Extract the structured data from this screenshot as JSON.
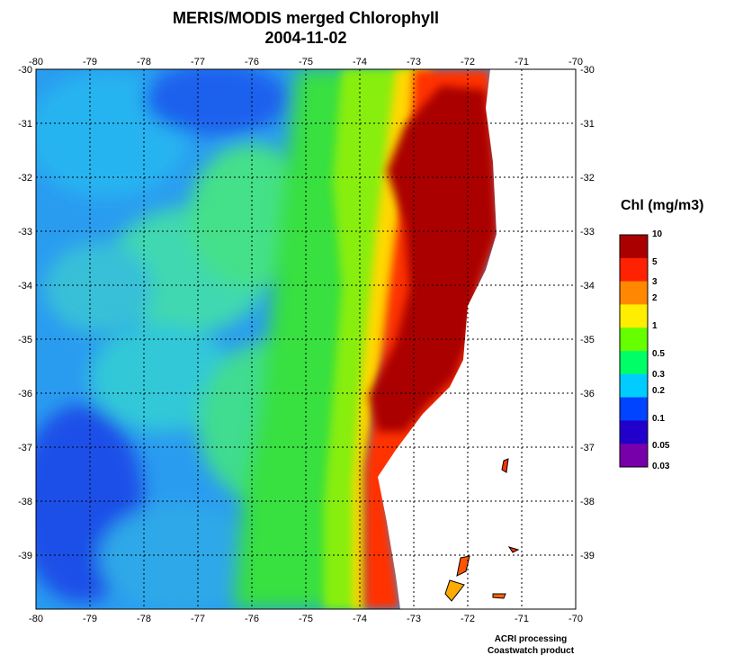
{
  "title": "MERIS/MODIS merged Chlorophyll",
  "date": "2004-11-02",
  "map": {
    "lon_min": -80,
    "lon_max": -70,
    "lat_min": -40,
    "lat_max": -30,
    "lon_ticks": [
      "-80",
      "-79",
      "-78",
      "-77",
      "-76",
      "-75",
      "-74",
      "-73",
      "-72",
      "-71",
      "-70"
    ],
    "lat_ticks": [
      "-30",
      "-31",
      "-32",
      "-33",
      "-34",
      "-35",
      "-36",
      "-37",
      "-38",
      "-39"
    ],
    "grid": "dotted",
    "land_color": "#ffffff"
  },
  "colorbar": {
    "title": "Chl (mg/m3)",
    "labels": [
      "10",
      "5",
      "3",
      "2",
      "1",
      "0.5",
      "0.3",
      "0.2",
      "0.1",
      "0.05",
      "0.03"
    ],
    "colors": [
      "#aa0000",
      "#ff2200",
      "#ff8800",
      "#ffee00",
      "#66ff00",
      "#00ff66",
      "#00ccff",
      "#0044ff",
      "#2200cc",
      "#7700aa"
    ]
  },
  "footer": {
    "line1": "ACRI processing",
    "line2": "Coastwatch product"
  }
}
